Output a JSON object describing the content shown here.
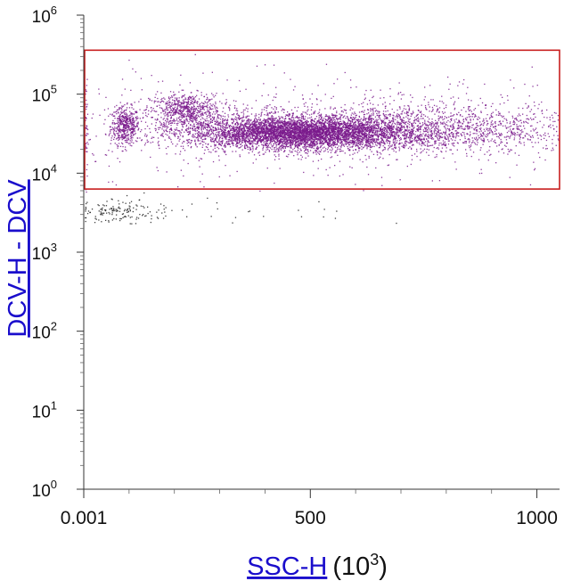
{
  "chart_data": {
    "type": "scatter",
    "title": "",
    "x_axis": {
      "label_link": "SSC-H",
      "label_unit_base": "(10",
      "label_unit_exp": "3",
      "label_unit_close": ")",
      "scale": "linear",
      "range": [
        0.001,
        1050
      ],
      "tick_labels": [
        {
          "text": "0.001",
          "value": 0.001
        },
        {
          "text": "500",
          "value": 500
        },
        {
          "text": "1000",
          "value": 1000
        }
      ],
      "minor_ticks": [
        100,
        200,
        300,
        400,
        600,
        700,
        800,
        900
      ]
    },
    "y_axis": {
      "label": "DCV-H - DCV",
      "scale": "log",
      "range": [
        1,
        1000000
      ],
      "tick_labels": [
        {
          "base": "10",
          "exp": "0",
          "value": 1
        },
        {
          "base": "10",
          "exp": "1",
          "value": 10
        },
        {
          "base": "10",
          "exp": "2",
          "value": 100
        },
        {
          "base": "10",
          "exp": "3",
          "value": 1000
        },
        {
          "base": "10",
          "exp": "4",
          "value": 10000
        },
        {
          "base": "10",
          "exp": "5",
          "value": 100000
        },
        {
          "base": "10",
          "exp": "6",
          "value": 1000000
        }
      ]
    },
    "gate": {
      "x_range": [
        0.001,
        1050
      ],
      "y_range": [
        6300,
        360000
      ],
      "color": "#c81e1e"
    },
    "series": [
      {
        "color": "#7a1a8c",
        "clusters": [
          {
            "x": 90,
            "y": 40000,
            "sx": 16,
            "sy": 0.12,
            "n": 450
          },
          {
            "x": 225,
            "y": 62000,
            "sx": 40,
            "sy": 0.11,
            "n": 700
          },
          {
            "x": 470,
            "y": 33000,
            "sx": 120,
            "sy": 0.1,
            "n": 5200
          },
          {
            "x": 700,
            "y": 36000,
            "sx": 140,
            "sy": 0.15,
            "n": 1400
          },
          {
            "x": 950,
            "y": 38000,
            "sx": 70,
            "sy": 0.17,
            "n": 250
          },
          {
            "x": 500,
            "y": 40000,
            "sx": 330,
            "sy": 0.3,
            "n": 900
          }
        ]
      },
      {
        "color": "#222222",
        "clusters": [
          {
            "x": 80,
            "y": 3300,
            "sx": 50,
            "sy": 0.07,
            "n": 140
          },
          {
            "x": 300,
            "y": 3500,
            "sx": 200,
            "sy": 0.09,
            "n": 30
          }
        ]
      }
    ],
    "grid": false,
    "legend": "none"
  }
}
